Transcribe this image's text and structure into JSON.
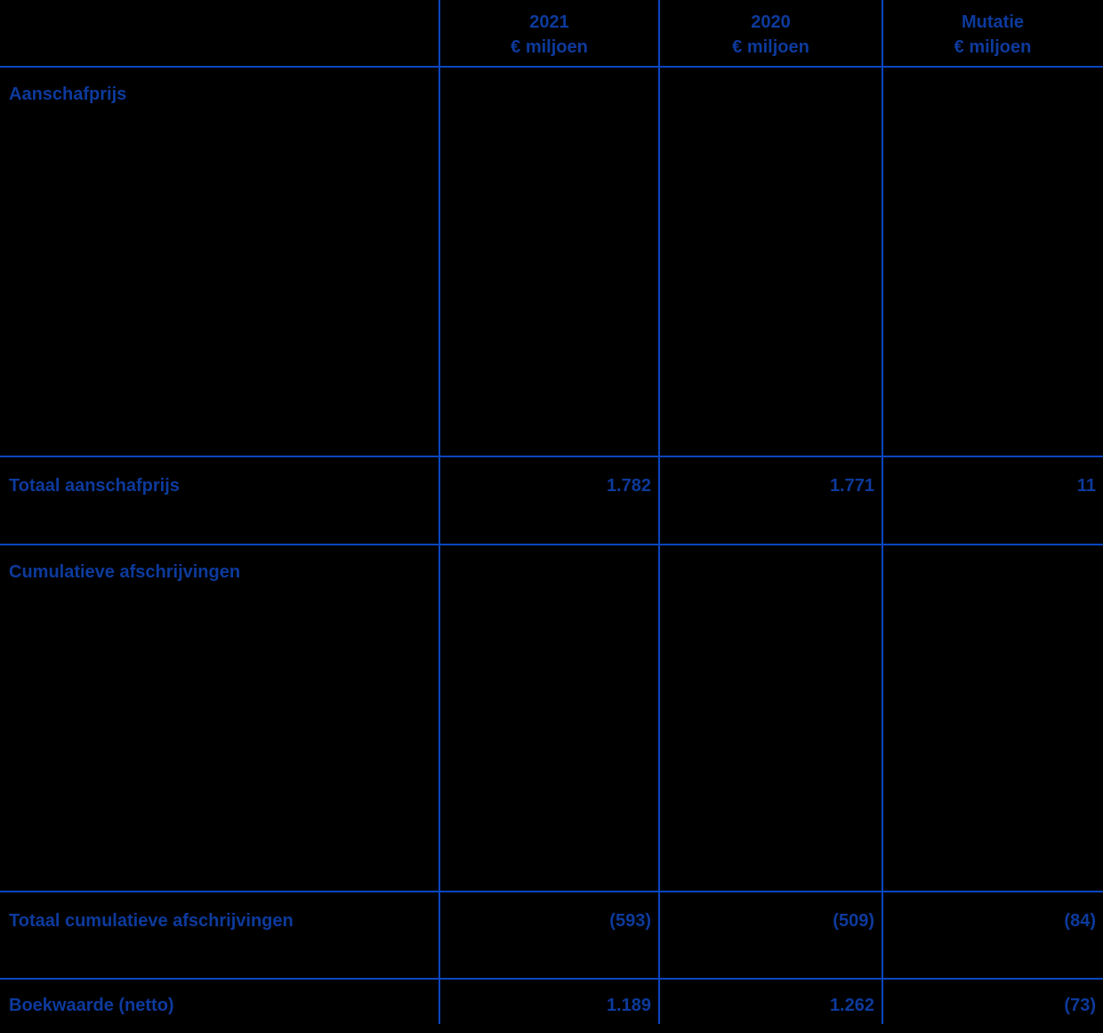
{
  "table": {
    "colors": {
      "background": "#000000",
      "text": "#0d3a9c",
      "grid_line": "#0a46c0"
    },
    "header": {
      "columns": [
        {
          "label": "2021",
          "unit": "€ miljoen"
        },
        {
          "label": "2020",
          "unit": "€ miljoen"
        },
        {
          "label": "Mutatie",
          "unit": "€ miljoen"
        }
      ]
    },
    "rows": [
      {
        "label": "Aanschafprijs",
        "type": "section-header",
        "values": [
          "",
          "",
          ""
        ]
      },
      {
        "label": "Totaal aanschafprijs",
        "type": "total",
        "values": [
          "1.782",
          "1.771",
          "11"
        ]
      },
      {
        "label": "Cumulatieve afschrijvingen",
        "type": "section-header",
        "values": [
          "",
          "",
          ""
        ]
      },
      {
        "label": "Totaal cumulatieve afschrijvingen",
        "type": "total",
        "values": [
          "(593)",
          "(509)",
          "(84)"
        ]
      },
      {
        "label": "Boekwaarde (netto)",
        "type": "total",
        "values": [
          "1.189",
          "1.262",
          "(73)"
        ]
      }
    ]
  }
}
